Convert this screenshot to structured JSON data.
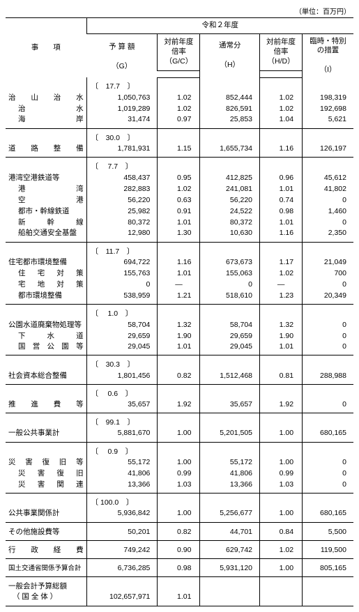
{
  "unit_label": "（単位：百万円）",
  "header": {
    "item": "事　　項",
    "year": "令和２年度",
    "budget": "予 算 額",
    "gc": "対前年度\n倍率",
    "gc2": "（G/C）",
    "normal": "通常分",
    "hd": "対前年度\n倍率",
    "hd2": "（H/D）",
    "rinji": "臨時・特別\nの措置",
    "g": "（G）",
    "h": "（H）",
    "i": "（I）"
  },
  "groups": [
    {
      "bracket": "〔　17.7　〕",
      "rows": [
        {
          "label": "治 山 治 水",
          "justify": true,
          "g": "1,050,763",
          "gc": "1.02",
          "h": "852,444",
          "hd": "1.02",
          "i": "198,319"
        },
        {
          "label": "治　　　水",
          "justify": true,
          "indent": 1,
          "g": "1,019,289",
          "gc": "1.02",
          "h": "826,591",
          "hd": "1.02",
          "i": "192,698"
        },
        {
          "label": "海　　　岸",
          "justify": true,
          "indent": 1,
          "g": "31,474",
          "gc": "0.97",
          "h": "25,853",
          "hd": "1.04",
          "i": "5,621"
        }
      ]
    },
    {
      "bracket": "〔　30.0　〕",
      "rows": [
        {
          "label": "道 路 整 備",
          "justify": true,
          "g": "1,781,931",
          "gc": "1.15",
          "h": "1,655,734",
          "hd": "1.16",
          "i": "126,197"
        }
      ]
    },
    {
      "bracket": "〔　 7.7　〕",
      "rows": [
        {
          "label": "港湾空港鉄道等",
          "g": "458,437",
          "gc": "0.95",
          "h": "412,825",
          "hd": "0.96",
          "i": "45,612"
        },
        {
          "label": "港　　　湾",
          "justify": true,
          "indent": 1,
          "g": "282,883",
          "gc": "1.02",
          "h": "241,081",
          "hd": "1.01",
          "i": "41,802"
        },
        {
          "label": "空　　　港",
          "justify": true,
          "indent": 1,
          "g": "56,220",
          "gc": "0.63",
          "h": "56,220",
          "hd": "0.74",
          "i": "0"
        },
        {
          "label": "都市・幹線鉄道",
          "indent": 1,
          "g": "25,982",
          "gc": "0.91",
          "h": "24,522",
          "hd": "0.98",
          "i": "1,460"
        },
        {
          "label": "新　幹　線",
          "justify": true,
          "indent": 1,
          "g": "80,372",
          "gc": "1.01",
          "h": "80,372",
          "hd": "1.01",
          "i": "0"
        },
        {
          "label": "船舶交通安全基盤",
          "indent": 1,
          "g": "12,980",
          "gc": "1.30",
          "h": "10,630",
          "hd": "1.16",
          "i": "2,350"
        }
      ]
    },
    {
      "bracket": "〔　11.7　〕",
      "rows": [
        {
          "label": "住宅都市環境整備",
          "g": "694,722",
          "gc": "1.16",
          "h": "673,673",
          "hd": "1.17",
          "i": "21,049"
        },
        {
          "label": "住 宅 対 策",
          "justify": true,
          "indent": 1,
          "g": "155,763",
          "gc": "1.01",
          "h": "155,063",
          "hd": "1.02",
          "i": "700"
        },
        {
          "label": "宅 地 対 策",
          "justify": true,
          "indent": 1,
          "g": "0",
          "gc": "—",
          "h": "0",
          "hd": "—",
          "i": "0",
          "dash": true
        },
        {
          "label": "都市環境整備",
          "indent": 1,
          "g": "538,959",
          "gc": "1.21",
          "h": "518,610",
          "hd": "1.23",
          "i": "20,349"
        }
      ]
    },
    {
      "bracket": "〔　 1.0　〕",
      "rows": [
        {
          "label": "公園水道廃棄物処理等",
          "g": "58,704",
          "gc": "1.32",
          "h": "58,704",
          "hd": "1.32",
          "i": "0"
        },
        {
          "label": "下　水　道",
          "justify": true,
          "indent": 1,
          "g": "29,659",
          "gc": "1.90",
          "h": "29,659",
          "hd": "1.90",
          "i": "0"
        },
        {
          "label": "国 営 公 園 等",
          "justify": true,
          "indent": 1,
          "g": "29,045",
          "gc": "1.01",
          "h": "29,045",
          "hd": "1.01",
          "i": "0"
        }
      ]
    },
    {
      "bracket": "〔　30.3　〕",
      "rows": [
        {
          "label": "社会資本総合整備",
          "g": "1,801,456",
          "gc": "0.82",
          "h": "1,512,468",
          "hd": "0.81",
          "i": "288,988"
        }
      ]
    },
    {
      "bracket": "〔　 0.6　〕",
      "rows": [
        {
          "label": "推 進 費 等",
          "justify": true,
          "g": "35,657",
          "gc": "1.92",
          "h": "35,657",
          "hd": "1.92",
          "i": "0"
        }
      ]
    },
    {
      "bracket": "〔　99.1　〕",
      "rows": [
        {
          "label": "一般公共事業計",
          "g": "5,881,670",
          "gc": "1.00",
          "h": "5,201,505",
          "hd": "1.00",
          "i": "680,165"
        }
      ]
    },
    {
      "bracket": "〔　 0.9　〕",
      "rows": [
        {
          "label": "災 害 復 旧 等",
          "justify": true,
          "g": "55,172",
          "gc": "1.00",
          "h": "55,172",
          "hd": "1.00",
          "i": "0"
        },
        {
          "label": "災 害 復 旧",
          "justify": true,
          "indent": 1,
          "g": "41,806",
          "gc": "0.99",
          "h": "41,806",
          "hd": "0.99",
          "i": "0"
        },
        {
          "label": "災 害 関 連",
          "justify": true,
          "indent": 1,
          "g": "13,366",
          "gc": "1.03",
          "h": "13,366",
          "hd": "1.03",
          "i": "0"
        }
      ]
    },
    {
      "bracket": "〔 100.0　〕",
      "rows": [
        {
          "label": "公共事業関係計",
          "g": "5,936,842",
          "gc": "1.00",
          "h": "5,256,677",
          "hd": "1.00",
          "i": "680,165"
        }
      ]
    },
    {
      "rows": [
        {
          "label": "その他施設費等",
          "g": "50,201",
          "gc": "0.82",
          "h": "44,701",
          "hd": "0.84",
          "i": "5,500"
        }
      ]
    },
    {
      "rows": [
        {
          "label": "行 政 経 費",
          "justify": true,
          "g": "749,242",
          "gc": "0.90",
          "h": "629,742",
          "hd": "1.02",
          "i": "119,500"
        }
      ]
    },
    {
      "rows": [
        {
          "label": "国土交通省関係予算合計",
          "small": true,
          "g": "6,736,285",
          "gc": "0.98",
          "h": "5,931,120",
          "hd": "1.00",
          "i": "805,165"
        }
      ]
    },
    {
      "rows": [
        {
          "label": "一般会計予算総額",
          "g": "",
          "gc": "",
          "h": "",
          "hd": "",
          "i": ""
        },
        {
          "label": "（ 国 全 体 ）",
          "indent": 2,
          "g": "102,657,971",
          "gc": "1.01",
          "h": "",
          "hd": "",
          "i": ""
        }
      ]
    }
  ]
}
